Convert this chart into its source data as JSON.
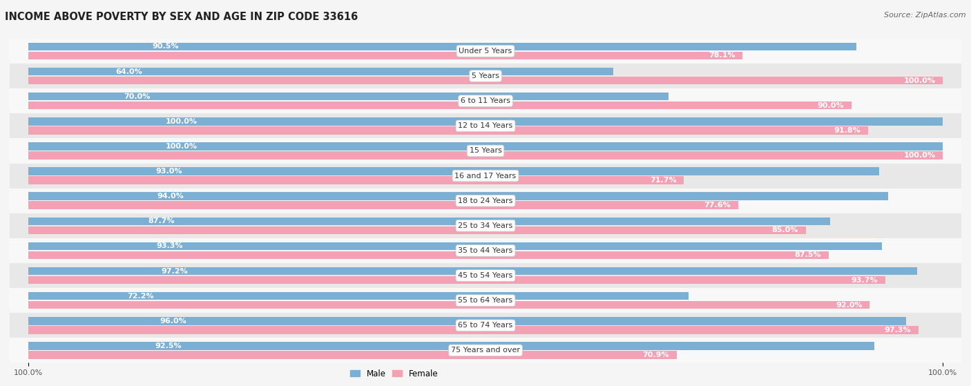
{
  "title": "INCOME ABOVE POVERTY BY SEX AND AGE IN ZIP CODE 33616",
  "source": "Source: ZipAtlas.com",
  "categories": [
    "Under 5 Years",
    "5 Years",
    "6 to 11 Years",
    "12 to 14 Years",
    "15 Years",
    "16 and 17 Years",
    "18 to 24 Years",
    "25 to 34 Years",
    "35 to 44 Years",
    "45 to 54 Years",
    "55 to 64 Years",
    "65 to 74 Years",
    "75 Years and over"
  ],
  "male_values": [
    90.5,
    64.0,
    70.0,
    100.0,
    100.0,
    93.0,
    94.0,
    87.7,
    93.3,
    97.2,
    72.2,
    96.0,
    92.5
  ],
  "female_values": [
    78.1,
    100.0,
    90.0,
    91.8,
    100.0,
    71.7,
    77.6,
    85.0,
    87.5,
    93.7,
    92.0,
    97.3,
    70.9
  ],
  "male_color": "#7bafd4",
  "female_color": "#f4a0b5",
  "bar_height": 0.32,
  "background_color": "#f0f0f0",
  "row_bg_light": "#f8f8f8",
  "row_bg_dark": "#e8e8e8",
  "title_fontsize": 10.5,
  "label_fontsize": 8.0,
  "tick_fontsize": 8,
  "source_fontsize": 8
}
